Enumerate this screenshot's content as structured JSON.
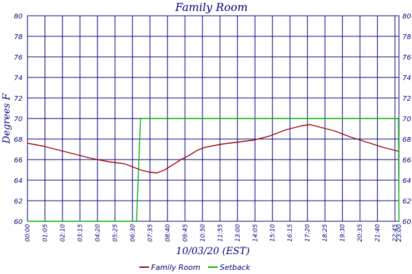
{
  "chart_data": {
    "type": "line",
    "title": "Family Room",
    "xlabel": "10/03/20 (EST)",
    "ylabel": "Degrees F",
    "ylim": [
      60,
      80
    ],
    "y_ticks": [
      60,
      62,
      64,
      66,
      68,
      70,
      72,
      74,
      76,
      78,
      80
    ],
    "x_ticks": [
      "00:00",
      "01:05",
      "02:10",
      "03:15",
      "04:20",
      "05:25",
      "06:30",
      "07:35",
      "08:40",
      "09:45",
      "10:50",
      "11:55",
      "13:00",
      "14:05",
      "15:10",
      "16:15",
      "17:20",
      "18:25",
      "19:30",
      "20:35",
      "21:40",
      "22:45",
      "23:00"
    ],
    "grid": true,
    "legend": "bottom",
    "colors": {
      "axis": "#00007a",
      "grid": "#00007a",
      "family_room": "#990000",
      "setback": "#00b000"
    },
    "series": [
      {
        "name": "Family Room",
        "color": "#990000",
        "x": [
          "00:00",
          "01:00",
          "02:00",
          "03:00",
          "04:00",
          "05:00",
          "06:00",
          "06:30",
          "07:00",
          "07:30",
          "08:00",
          "08:30",
          "09:00",
          "09:30",
          "10:00",
          "10:30",
          "11:00",
          "12:00",
          "13:00",
          "14:00",
          "15:00",
          "16:00",
          "16:30",
          "17:00",
          "17:30",
          "18:00",
          "18:30",
          "19:00",
          "20:00",
          "21:00",
          "22:00",
          "23:00"
        ],
        "values": [
          67.6,
          67.3,
          66.9,
          66.5,
          66.1,
          65.8,
          65.6,
          65.3,
          65.0,
          64.8,
          64.7,
          65.0,
          65.5,
          66.0,
          66.4,
          66.9,
          67.2,
          67.5,
          67.7,
          67.9,
          68.3,
          68.9,
          69.1,
          69.3,
          69.4,
          69.2,
          69.0,
          68.8,
          68.2,
          67.7,
          67.2,
          66.8
        ]
      },
      {
        "name": "Setback",
        "color": "#00b000",
        "x": [
          "00:00",
          "06:45",
          "07:00",
          "22:58",
          "23:00"
        ],
        "values": [
          60,
          60,
          70,
          70,
          60
        ]
      }
    ]
  }
}
